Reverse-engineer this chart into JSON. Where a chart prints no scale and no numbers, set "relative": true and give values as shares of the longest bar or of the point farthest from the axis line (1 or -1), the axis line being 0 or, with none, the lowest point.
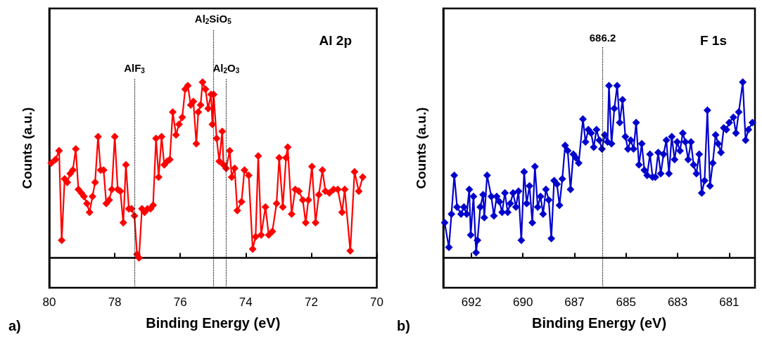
{
  "chart_data": [
    {
      "type": "line",
      "relative": true,
      "xlabel": "Binding Energy (eV)",
      "ylabel": "Counts (a.u.)",
      "xlim": [
        80,
        70
      ],
      "xticks": [
        80,
        78,
        76,
        74,
        72,
        70
      ],
      "grid": false,
      "marker": "diamond",
      "line_style": "solid",
      "annotations": [
        "a)",
        "Al 2p"
      ],
      "ref_lines": [
        {
          "axis": "x",
          "value": 77.4,
          "label": "AlF$_{3}$",
          "line_style": "dotted",
          "color": "#000000"
        },
        {
          "axis": "x",
          "value": 75.0,
          "label": "Al$_{2}$SiO$_{5}$",
          "line_style": "dotted",
          "color": "#000000"
        },
        {
          "axis": "x",
          "value": 74.6,
          "label": "Al$_{2}$O$_{3}$",
          "line_style": "dotted",
          "color": "#000000"
        }
      ],
      "series": [
        {
          "color": "#ff0000",
          "x": [
            79.94,
            79.81,
            79.7,
            79.62,
            79.53,
            79.45,
            79.36,
            79.28,
            79.19,
            79.11,
            79.02,
            78.94,
            78.85,
            78.77,
            78.68,
            78.6,
            78.51,
            78.43,
            78.34,
            78.26,
            78.17,
            78.09,
            78.0,
            77.91,
            77.83,
            77.74,
            77.66,
            77.57,
            77.49,
            77.4,
            77.32,
            77.26,
            77.17,
            77.09,
            77.0,
            76.91,
            76.83,
            76.74,
            76.66,
            76.57,
            76.49,
            76.4,
            76.32,
            76.23,
            76.13,
            76.04,
            75.94,
            75.85,
            75.77,
            75.68,
            75.6,
            75.51,
            75.45,
            75.38,
            75.32,
            75.23,
            75.15,
            75.06,
            75.02,
            74.98,
            74.89,
            74.81,
            74.72,
            74.68,
            74.6,
            74.49,
            74.43,
            74.34,
            74.26,
            74.13,
            74.04,
            73.91,
            73.79,
            73.7,
            73.62,
            73.53,
            73.4,
            73.3,
            73.19,
            73.06,
            72.98,
            72.87,
            72.77,
            72.72,
            72.6,
            72.49,
            72.38,
            72.26,
            72.17,
            72.09,
            71.98,
            71.87,
            71.77,
            71.66,
            71.57,
            71.45,
            71.32,
            71.19,
            71.06,
            70.98,
            70.81,
            70.68,
            70.55,
            70.43
          ],
          "values": [
            0.54,
            0.56,
            0.61,
            0.1,
            0.45,
            0.43,
            0.48,
            0.5,
            0.62,
            0.39,
            0.37,
            0.35,
            0.31,
            0.26,
            0.35,
            0.43,
            0.69,
            0.5,
            0.5,
            0.31,
            0.33,
            0.39,
            0.69,
            0.39,
            0.38,
            0.2,
            0.53,
            0.28,
            0.28,
            0.24,
            0.02,
            0.0,
            0.28,
            0.26,
            0.28,
            0.28,
            0.3,
            0.68,
            0.46,
            0.69,
            0.53,
            0.55,
            0.56,
            0.83,
            0.7,
            0.76,
            0.8,
            0.96,
            0.98,
            0.87,
            0.89,
            0.65,
            0.83,
            0.87,
            1.0,
            0.96,
            0.85,
            0.93,
            0.76,
            0.93,
            0.68,
            0.55,
            0.72,
            0.53,
            0.51,
            0.61,
            0.46,
            0.51,
            0.27,
            0.32,
            0.5,
            0.47,
            0.05,
            0.12,
            0.58,
            0.13,
            0.29,
            0.13,
            0.15,
            0.31,
            0.57,
            0.29,
            0.57,
            0.63,
            0.25,
            0.39,
            0.38,
            0.33,
            0.2,
            0.33,
            0.52,
            0.2,
            0.36,
            0.5,
            0.38,
            0.37,
            0.39,
            0.39,
            0.26,
            0.39,
            0.04,
            0.49,
            0.38,
            0.46
          ]
        }
      ]
    },
    {
      "type": "line",
      "relative": true,
      "xlabel": "Binding Energy (eV)",
      "ylabel": "Counts (a.u.)",
      "xlim": [
        693,
        679.7
      ],
      "xticks": [
        {
          "value": 691.8,
          "label": "692"
        },
        {
          "value": 689.6,
          "label": "690"
        },
        {
          "value": 687.4,
          "label": "687"
        },
        {
          "value": 685.2,
          "label": "685"
        },
        {
          "value": 683.0,
          "label": "683"
        },
        {
          "value": 680.8,
          "label": "681"
        }
      ],
      "grid": false,
      "marker": "diamond",
      "line_style": "solid",
      "annotations": [
        "b)",
        "F 1s"
      ],
      "ref_lines": [
        {
          "axis": "x",
          "value": 686.2,
          "label": "686.2",
          "line_style": "dotted",
          "color": "#000000"
        }
      ],
      "series": [
        {
          "color": "#0000cc",
          "x": [
            692.94,
            692.76,
            692.65,
            692.53,
            692.41,
            692.24,
            692.12,
            692.0,
            691.89,
            691.83,
            691.71,
            691.6,
            691.54,
            691.42,
            691.3,
            691.25,
            691.13,
            690.95,
            690.84,
            690.72,
            690.6,
            690.49,
            690.37,
            690.25,
            690.14,
            690.02,
            689.9,
            689.79,
            689.67,
            689.55,
            689.44,
            689.32,
            689.2,
            689.09,
            688.97,
            688.85,
            688.74,
            688.62,
            688.5,
            688.39,
            688.27,
            688.15,
            688.04,
            687.92,
            687.8,
            687.69,
            687.57,
            687.45,
            687.34,
            687.22,
            687.04,
            686.93,
            686.81,
            686.69,
            686.58,
            686.46,
            686.34,
            686.23,
            686.11,
            685.99,
            685.93,
            685.82,
            685.7,
            685.58,
            685.47,
            685.35,
            685.23,
            685.12,
            685.0,
            684.88,
            684.77,
            684.65,
            684.53,
            684.42,
            684.3,
            684.18,
            684.07,
            683.95,
            683.83,
            683.72,
            683.6,
            683.48,
            683.37,
            683.25,
            683.13,
            683.02,
            682.9,
            682.78,
            682.67,
            682.55,
            682.43,
            682.32,
            682.2,
            682.08,
            681.97,
            681.85,
            681.73,
            681.62,
            681.5,
            681.38,
            681.27,
            681.15,
            681.03,
            680.92,
            680.8,
            680.62,
            680.51,
            680.39,
            680.22,
            680.1,
            679.98,
            679.81
          ],
          "values": [
            0.2,
            0.06,
            0.25,
            0.47,
            0.29,
            0.25,
            0.29,
            0.25,
            0.39,
            0.13,
            0.35,
            0.03,
            0.1,
            0.29,
            0.36,
            0.23,
            0.47,
            0.35,
            0.24,
            0.35,
            0.32,
            0.26,
            0.37,
            0.26,
            0.31,
            0.37,
            0.29,
            0.38,
            0.1,
            0.49,
            0.31,
            0.41,
            0.2,
            0.52,
            0.29,
            0.35,
            0.25,
            0.39,
            0.33,
            0.11,
            0.44,
            0.42,
            0.3,
            0.45,
            0.64,
            0.61,
            0.39,
            0.59,
            0.57,
            0.54,
            0.79,
            0.66,
            0.73,
            0.71,
            0.63,
            0.73,
            0.67,
            0.62,
            0.7,
            0.66,
            0.98,
            0.65,
            0.85,
            0.98,
            0.77,
            0.9,
            0.69,
            0.62,
            0.67,
            0.62,
            0.77,
            0.53,
            0.65,
            0.5,
            0.47,
            0.59,
            0.46,
            0.46,
            0.6,
            0.48,
            0.59,
            0.67,
            0.48,
            0.69,
            0.56,
            0.66,
            0.61,
            0.71,
            0.66,
            0.56,
            0.66,
            0.53,
            0.48,
            0.59,
            0.37,
            0.44,
            0.84,
            0.41,
            0.54,
            0.7,
            0.65,
            0.6,
            0.74,
            0.73,
            0.77,
            0.8,
            0.71,
            0.83,
            1.0,
            0.67,
            0.73,
            0.77
          ]
        }
      ]
    }
  ]
}
